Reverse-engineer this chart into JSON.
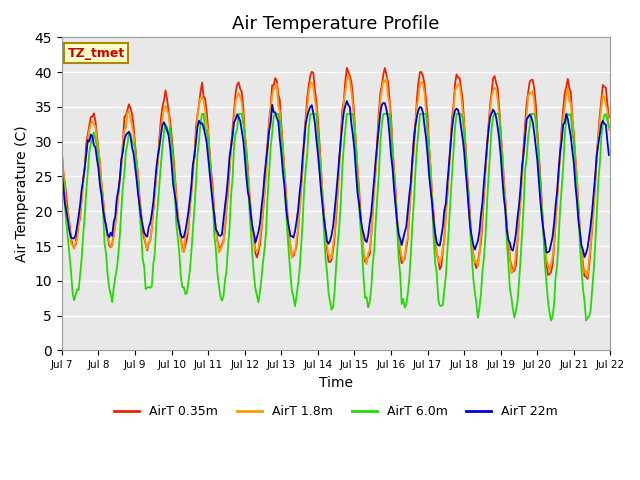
{
  "title": "Air Temperature Profile",
  "xlabel": "Time",
  "ylabel": "Air Temperature (C)",
  "ylim": [
    0,
    45
  ],
  "xlim_days": [
    7,
    22
  ],
  "background_color": "#e8e8e8",
  "fig_background": "#ffffff",
  "colors": {
    "AirT 0.35m": "#ee2200",
    "AirT 1.8m": "#ff9900",
    "AirT 6.0m": "#22dd00",
    "AirT 22m": "#0000dd"
  },
  "legend_labels": [
    "AirT 0.35m",
    "AirT 1.8m",
    "AirT 6.0m",
    "AirT 22m"
  ],
  "tz_label": "TZ_tmet",
  "tz_bg": "#ffffcc",
  "tz_border": "#aa8800",
  "tz_text_color": "#cc0000",
  "start_day": 7,
  "n_days": 15,
  "title_fontsize": 13,
  "axis_label_fontsize": 10
}
